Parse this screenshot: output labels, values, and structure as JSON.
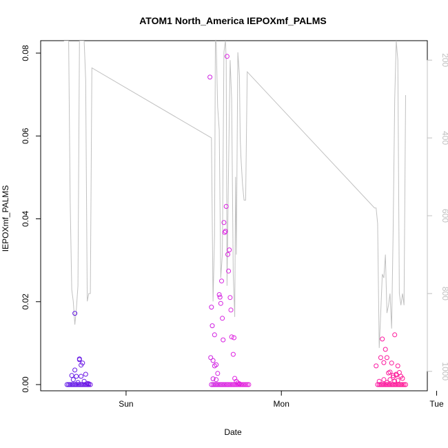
{
  "chart_data": {
    "type": "scatter",
    "title": "ATOM1 North_America IEPOXmf_PALMS",
    "xlabel": "Date",
    "ylabel": "IEPOXmf_PALMS",
    "x_ticks": [
      "Sun",
      "Mon",
      "Tue"
    ],
    "y_ticks": [
      "0.00",
      "0.02",
      "0.04",
      "0.06",
      "0.08"
    ],
    "y2_ticks": [
      "200",
      "400",
      "600",
      "800",
      "1000"
    ],
    "ylim": [
      -0.0015,
      0.083
    ],
    "y2lim": [
      1050,
      150
    ],
    "y2_reversed": true,
    "colors": {
      "points_start": "#5a14e6",
      "points_mid": "#e020e0",
      "points_end": "#ff1493",
      "line": "#c0c0c0",
      "axis": "#000000",
      "y2_axis": "#c0c0c0"
    },
    "series": [
      {
        "kind": "points",
        "x": [
          -0.38,
          -0.37,
          -0.36,
          -0.35,
          -0.34,
          -0.33,
          -0.32,
          -0.31,
          -0.3,
          -0.29,
          -0.28,
          -0.27,
          -0.26,
          -0.25,
          -0.24,
          -0.23,
          -0.33,
          -0.33,
          -0.32,
          -0.3,
          -0.3,
          -0.29,
          -0.28,
          -0.26,
          -0.24,
          -0.35,
          -0.34,
          -0.31,
          -0.29,
          -0.27,
          -0.25,
          0.55,
          0.56,
          0.57,
          0.58,
          0.59,
          0.6,
          0.61,
          0.62,
          0.63,
          0.64,
          0.65,
          0.66,
          0.67,
          0.68,
          0.69,
          0.7,
          0.71,
          0.72,
          0.73,
          0.74,
          0.75,
          0.76,
          0.77,
          0.78,
          0.79,
          0.54,
          0.55,
          0.555,
          0.56,
          0.57,
          0.58,
          0.59,
          0.6,
          0.605,
          0.61,
          0.615,
          0.62,
          0.625,
          0.63,
          0.635,
          0.64,
          0.645,
          0.65,
          0.655,
          0.66,
          0.665,
          0.67,
          0.675,
          0.68,
          0.69,
          0.695,
          0.7,
          0.71,
          0.72,
          0.73,
          0.57,
          0.58,
          0.56,
          0.545,
          1.62,
          1.63,
          1.64,
          1.65,
          1.66,
          1.67,
          1.68,
          1.69,
          1.7,
          1.71,
          1.72,
          1.73,
          1.74,
          1.75,
          1.76,
          1.77,
          1.78,
          1.79,
          1.8,
          1.61,
          1.63,
          1.64,
          1.65,
          1.66,
          1.67,
          1.68,
          1.69,
          1.7,
          1.71,
          1.72,
          1.73,
          1.74,
          1.75,
          1.76,
          1.77,
          1.78,
          1.66,
          1.68,
          1.7,
          1.72,
          1.74,
          1.73,
          1.75
        ],
        "y": [
          0,
          0,
          0,
          0,
          0,
          0,
          0,
          0,
          0,
          0,
          0,
          0,
          0,
          0,
          0,
          0,
          0.0172,
          0.0035,
          0.002,
          0.0062,
          0.006,
          0.0047,
          0.0052,
          0.0025,
          0.0002,
          0.0022,
          0.0012,
          0.0005,
          0.002,
          0.0008,
          0.0003,
          0,
          0,
          0,
          0,
          0,
          0,
          0,
          0,
          0,
          0,
          0,
          0,
          0,
          0,
          0,
          0,
          0,
          0,
          0,
          0,
          0,
          0,
          0,
          0,
          0,
          0.0742,
          0.0187,
          0.0142,
          0.0058,
          0.012,
          0.0048,
          0.0027,
          0.0217,
          0.0211,
          0.0196,
          0.025,
          0.016,
          0.0108,
          0.0391,
          0.0367,
          0.037,
          0.043,
          0.0792,
          0.0314,
          0.0274,
          0.0325,
          0.021,
          0.018,
          0.0115,
          0.0073,
          0.0113,
          0.0015,
          0.0008,
          0.0004,
          0.0002,
          0.0045,
          0.0012,
          0.0014,
          0.0065,
          0,
          0,
          0,
          0,
          0,
          0,
          0,
          0,
          0,
          0,
          0,
          0,
          0,
          0,
          0,
          0,
          0,
          0,
          0,
          0.0045,
          0.0008,
          0.0065,
          0.011,
          0.0053,
          0.0085,
          0.0065,
          0.0028,
          0.0012,
          0.0052,
          0.0022,
          0.012,
          0.0025,
          0.0045,
          0.0029,
          0.002,
          0.0015,
          0.0012,
          0.0005,
          0.003,
          0.0018,
          0.0023,
          0.0008,
          0.001
        ]
      },
      {
        "kind": "line",
        "axis": "y2",
        "x": [
          -0.4,
          -0.39,
          -0.38,
          -0.37,
          -0.36,
          -0.35,
          -0.34,
          -0.33,
          -0.32,
          -0.31,
          -0.3,
          -0.29,
          -0.28,
          -0.27,
          -0.26,
          -0.25,
          -0.24,
          -0.23,
          -0.22,
          0.55,
          0.56,
          0.57,
          0.575,
          0.58,
          0.59,
          0.6,
          0.61,
          0.62,
          0.63,
          0.64,
          0.645,
          0.65,
          0.66,
          0.67,
          0.675,
          0.68,
          0.69,
          0.7,
          0.705,
          0.71,
          0.72,
          0.73,
          0.735,
          0.74,
          0.75,
          0.76,
          0.77,
          0.78,
          1.6,
          1.61,
          1.62,
          1.63,
          1.64,
          1.65,
          1.66,
          1.67,
          1.68,
          1.69,
          1.7,
          1.71,
          1.72,
          1.73,
          1.74,
          1.75,
          1.76,
          1.77,
          1.78,
          1.79,
          1.8
        ],
        "y": [
          150,
          150,
          150,
          150,
          560,
          790,
          820,
          880,
          840,
          780,
          150,
          150,
          150,
          150,
          250,
          820,
          800,
          800,
          220,
          400,
          820,
          650,
          150,
          150,
          320,
          380,
          760,
          700,
          180,
          150,
          200,
          780,
          480,
          200,
          250,
          300,
          750,
          860,
          500,
          700,
          180,
          240,
          400,
          450,
          520,
          560,
          560,
          230,
          580,
          580,
          620,
          940,
          850,
          750,
          760,
          700,
          850,
          830,
          800,
          890,
          640,
          300,
          150,
          200,
          800,
          830,
          800,
          830,
          290
        ]
      }
    ]
  }
}
